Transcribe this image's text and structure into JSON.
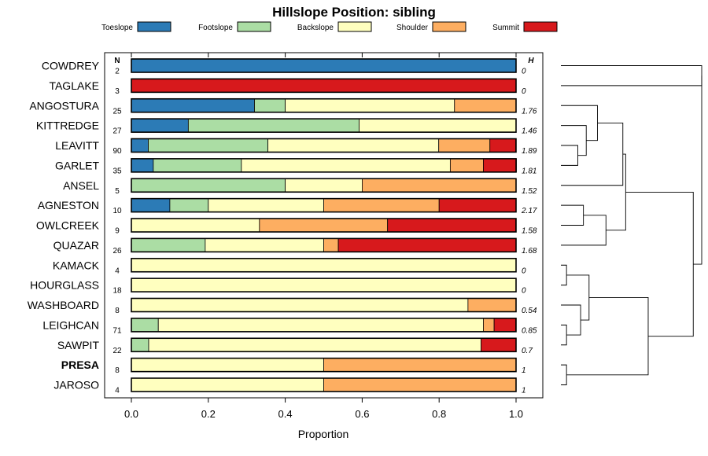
{
  "chart_data": {
    "type": "bar",
    "orientation": "horizontal",
    "stacked": true,
    "title": "Hillslope Position: sibling",
    "xlabel": "Proportion",
    "ylabel": "",
    "xlim": [
      0,
      1
    ],
    "x_ticks": [
      "0.0",
      "0.2",
      "0.4",
      "0.6",
      "0.8",
      "1.0"
    ],
    "x_tick_values": [
      0,
      0.2,
      0.4,
      0.6,
      0.8,
      1.0
    ],
    "n_header": "N",
    "h_header": "H",
    "legend": [
      {
        "name": "Toeslope",
        "color": "#2C7BB6"
      },
      {
        "name": "Footslope",
        "color": "#ABDDA4"
      },
      {
        "name": "Backslope",
        "color": "#FFFFBF"
      },
      {
        "name": "Shoulder",
        "color": "#FDAE61"
      },
      {
        "name": "Summit",
        "color": "#D7191C"
      }
    ],
    "categories": [
      "COWDREY",
      "TAGLAKE",
      "ANGOSTURA",
      "KITTREDGE",
      "LEAVITT",
      "GARLET",
      "ANSEL",
      "AGNESTON",
      "OWLCREEK",
      "QUAZAR",
      "KAMACK",
      "HOURGLASS",
      "WASHBOARD",
      "LEIGHCAN",
      "SAWPIT",
      "PRESA",
      "JAROSO"
    ],
    "bold_category": "PRESA",
    "rows": [
      {
        "name": "COWDREY",
        "n": "2",
        "h": "0",
        "values": [
          1.0,
          0,
          0,
          0,
          0
        ]
      },
      {
        "name": "TAGLAKE",
        "n": "3",
        "h": "0",
        "values": [
          0,
          0,
          0,
          0,
          1.0
        ]
      },
      {
        "name": "ANGOSTURA",
        "n": "25",
        "h": "1.76",
        "values": [
          0.32,
          0.08,
          0.44,
          0.16,
          0
        ]
      },
      {
        "name": "KITTREDGE",
        "n": "27",
        "h": "1.46",
        "values": [
          0.148,
          0.444,
          0.408,
          0,
          0
        ]
      },
      {
        "name": "LEAVITT",
        "n": "90",
        "h": "1.89",
        "values": [
          0.044,
          0.311,
          0.444,
          0.133,
          0.067
        ]
      },
      {
        "name": "GARLET",
        "n": "35",
        "h": "1.81",
        "values": [
          0.057,
          0.229,
          0.543,
          0.086,
          0.086
        ]
      },
      {
        "name": "ANSEL",
        "n": "5",
        "h": "1.52",
        "values": [
          0,
          0.4,
          0.2,
          0.4,
          0
        ]
      },
      {
        "name": "AGNESTON",
        "n": "10",
        "h": "2.17",
        "values": [
          0.1,
          0.1,
          0.3,
          0.3,
          0.2
        ]
      },
      {
        "name": "OWLCREEK",
        "n": "9",
        "h": "1.58",
        "values": [
          0,
          0,
          0.333,
          0.333,
          0.333
        ]
      },
      {
        "name": "QUAZAR",
        "n": "26",
        "h": "1.68",
        "values": [
          0,
          0.192,
          0.308,
          0.038,
          0.462
        ]
      },
      {
        "name": "KAMACK",
        "n": "4",
        "h": "0",
        "values": [
          0,
          0,
          1.0,
          0,
          0
        ]
      },
      {
        "name": "HOURGLASS",
        "n": "18",
        "h": "0",
        "values": [
          0,
          0,
          1.0,
          0,
          0
        ]
      },
      {
        "name": "WASHBOARD",
        "n": "8",
        "h": "0.54",
        "values": [
          0,
          0,
          0.875,
          0.125,
          0
        ]
      },
      {
        "name": "LEIGHCAN",
        "n": "71",
        "h": "0.85",
        "values": [
          0,
          0.07,
          0.845,
          0.028,
          0.056
        ]
      },
      {
        "name": "SAWPIT",
        "n": "22",
        "h": "0.7",
        "values": [
          0,
          0.045,
          0.864,
          0,
          0.091
        ]
      },
      {
        "name": "PRESA",
        "n": "8",
        "h": "1",
        "values": [
          0,
          0,
          0.5,
          0.5,
          0
        ]
      },
      {
        "name": "JAROSO",
        "n": "4",
        "h": "1",
        "values": [
          0,
          0,
          0.5,
          0.5,
          0
        ]
      }
    ],
    "dendrogram": {
      "leaf_order": [
        "COWDREY",
        "TAGLAKE",
        "ANGOSTURA",
        "KITTREDGE",
        "LEAVITT",
        "GARLET",
        "ANSEL",
        "AGNESTON",
        "OWLCREEK",
        "QUAZAR",
        "KAMACK",
        "HOURGLASS",
        "WASHBOARD",
        "LEIGHCAN",
        "SAWPIT",
        "PRESA",
        "JAROSO"
      ],
      "merges": [
        {
          "a": "L4",
          "b": "L5",
          "height": 0.12
        },
        {
          "a": "L3",
          "b": "N0",
          "height": 0.18
        },
        {
          "a": "L2",
          "b": "N1",
          "height": 0.26
        },
        {
          "a": "L7",
          "b": "L8",
          "height": 0.16
        },
        {
          "a": "N3",
          "b": "L9",
          "height": 0.32
        },
        {
          "a": "N2",
          "b": "L6",
          "height": 0.44
        },
        {
          "a": "N5",
          "b": "N4",
          "height": 0.46
        },
        {
          "a": "L10",
          "b": "L11",
          "height": 0.04
        },
        {
          "a": "L13",
          "b": "L14",
          "height": 0.04
        },
        {
          "a": "L12",
          "b": "N8",
          "height": 0.14
        },
        {
          "a": "N7",
          "b": "N9",
          "height": 0.2
        },
        {
          "a": "L15",
          "b": "L16",
          "height": 0.04
        },
        {
          "a": "N10",
          "b": "N11",
          "height": 0.62
        },
        {
          "a": "N6",
          "b": "N12",
          "height": 0.94
        },
        {
          "a": "L0",
          "b": "L1",
          "height": 1.0
        },
        {
          "a": "N14",
          "b": "N13",
          "height": 1.0
        }
      ]
    }
  }
}
